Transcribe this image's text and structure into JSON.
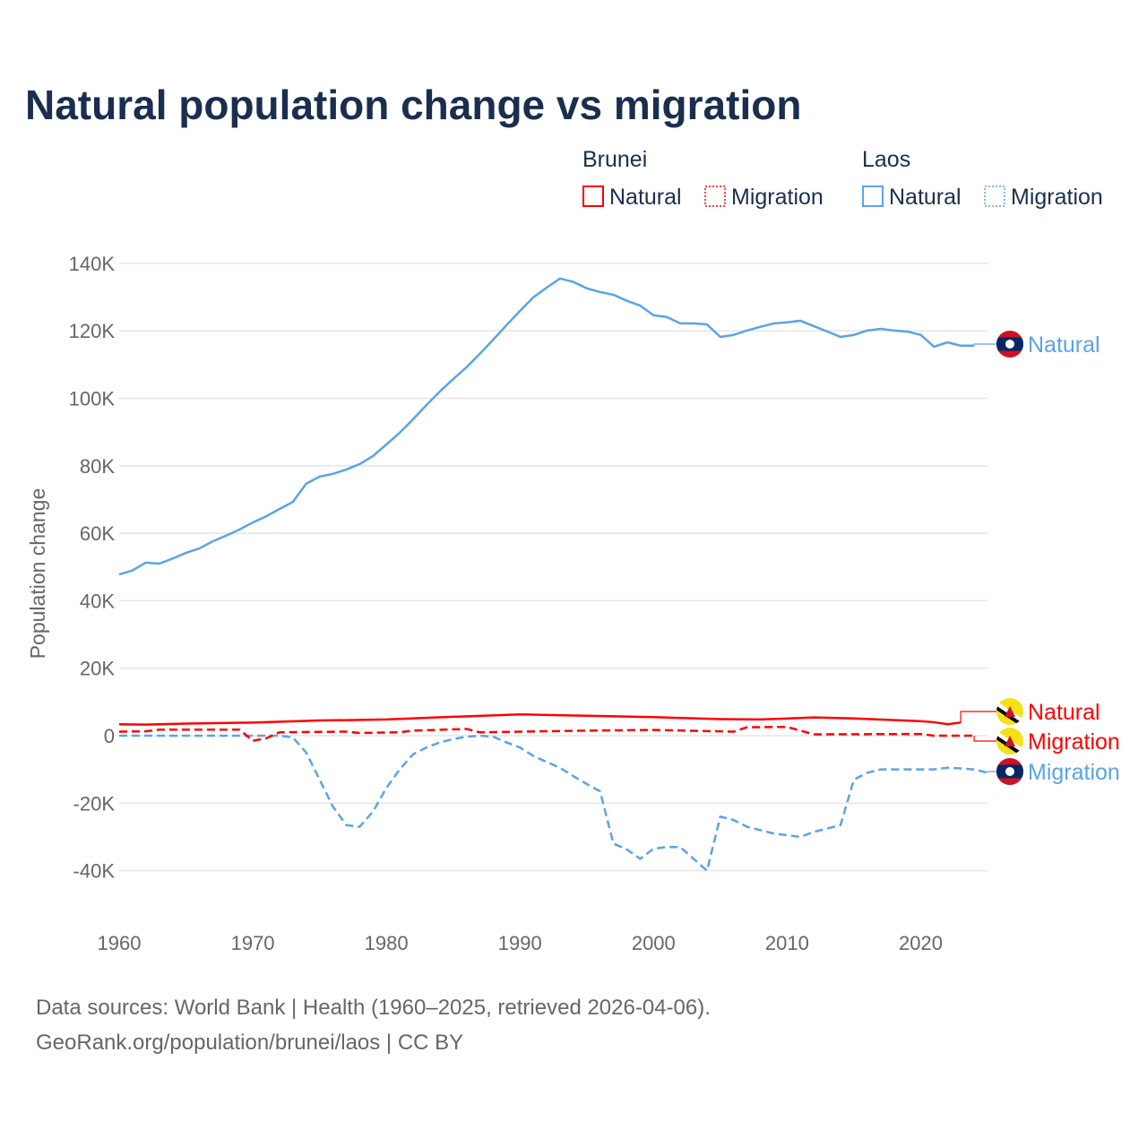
{
  "chart_data": {
    "type": "line",
    "title": "Natural population change vs migration",
    "xlabel": "",
    "ylabel": "Population change",
    "xlim": [
      1960,
      2025
    ],
    "ylim": [
      -50000,
      140000
    ],
    "x_ticks": [
      "1960",
      "1970",
      "1980",
      "1990",
      "2000",
      "2010",
      "2020"
    ],
    "y_ticks": [
      {
        "v": 140000,
        "label": "140K"
      },
      {
        "v": 120000,
        "label": "120K"
      },
      {
        "v": 100000,
        "label": "100K"
      },
      {
        "v": 80000,
        "label": "80K"
      },
      {
        "v": 60000,
        "label": "60K"
      },
      {
        "v": 40000,
        "label": "40K"
      },
      {
        "v": 20000,
        "label": "20K"
      },
      {
        "v": 0,
        "label": "0"
      },
      {
        "v": -20000,
        "label": "-20K"
      },
      {
        "v": -40000,
        "label": "-40K"
      }
    ],
    "grid": true,
    "legend": {
      "placement": "top-right",
      "groups": [
        {
          "name": "Brunei",
          "items": [
            "Natural",
            "Migration"
          ]
        },
        {
          "name": "Laos",
          "items": [
            "Natural",
            "Migration"
          ]
        }
      ]
    },
    "colors": {
      "Brunei": "#ff0000",
      "Laos": "#5ba3e8"
    },
    "series": [
      {
        "name": "Laos Natural",
        "country": "Laos",
        "kind": "Natural",
        "label": "Natural",
        "x": [
          1960,
          1961,
          1962,
          1963,
          1964,
          1965,
          1966,
          1967,
          1968,
          1969,
          1970,
          1971,
          1972,
          1973,
          1974,
          1975,
          1976,
          1977,
          1978,
          1979,
          1980,
          1981,
          1982,
          1983,
          1984,
          1985,
          1986,
          1987,
          1988,
          1989,
          1990,
          1991,
          1992,
          1993,
          1994,
          1995,
          1996,
          1997,
          1998,
          1999,
          2000,
          2001,
          2002,
          2003,
          2004,
          2005,
          2006,
          2007,
          2008,
          2009,
          2010,
          2011,
          2012,
          2013,
          2014,
          2015,
          2016,
          2017,
          2018,
          2019,
          2020,
          2021,
          2022,
          2023,
          2024
        ],
        "y": [
          47800,
          49000,
          51300,
          51000,
          52500,
          54200,
          55500,
          57600,
          59300,
          61100,
          63200,
          65000,
          67200,
          69300,
          74700,
          76800,
          77600,
          78900,
          80500,
          82900,
          86300,
          89800,
          93800,
          98000,
          102000,
          105700,
          109200,
          113200,
          117400,
          121700,
          125900,
          129900,
          132800,
          135500,
          134500,
          132600,
          131500,
          130700,
          128900,
          127500,
          124600,
          124100,
          122200,
          122200,
          121900,
          118200,
          118800,
          120100,
          121200,
          122200,
          122500,
          123000,
          121400,
          119800,
          118200,
          118800,
          120100,
          120600,
          120100,
          119800,
          118800,
          115300,
          116600,
          115600,
          115600
        ]
      },
      {
        "name": "Laos Migration",
        "country": "Laos",
        "kind": "Migration",
        "label": "Migration",
        "x": [
          1960,
          1965,
          1970,
          1972,
          1973,
          1974,
          1975,
          1976,
          1977,
          1978,
          1979,
          1980,
          1981,
          1982,
          1983,
          1984,
          1985,
          1986,
          1987,
          1988,
          1989,
          1990,
          1991,
          1992,
          1993,
          1994,
          1995,
          1996,
          1997,
          1998,
          1999,
          2000,
          2001,
          2002,
          2003,
          2004,
          2005,
          2006,
          2007,
          2008,
          2009,
          2010,
          2011,
          2012,
          2013,
          2014,
          2015,
          2016,
          2017,
          2018,
          2019,
          2020,
          2021,
          2022,
          2023,
          2024,
          2025
        ],
        "y": [
          0,
          0,
          0,
          0,
          -500,
          -5000,
          -13000,
          -21000,
          -26500,
          -27000,
          -22500,
          -15500,
          -10000,
          -5500,
          -3500,
          -2000,
          -1000,
          -300,
          0,
          -300,
          -2000,
          -3500,
          -6000,
          -7800,
          -9500,
          -12000,
          -14300,
          -16500,
          -32000,
          -33700,
          -36500,
          -33500,
          -33000,
          -33000,
          -36500,
          -40000,
          -24000,
          -25000,
          -27000,
          -28000,
          -29000,
          -29500,
          -30000,
          -28500,
          -27500,
          -26500,
          -13000,
          -11000,
          -10000,
          -10000,
          -10000,
          -10000,
          -10000,
          -9500,
          -9700,
          -10000,
          -11000
        ]
      },
      {
        "name": "Brunei Natural",
        "country": "Brunei",
        "kind": "Natural",
        "label": "Natural",
        "x": [
          1960,
          1962,
          1965,
          1970,
          1975,
          1980,
          1985,
          1990,
          1995,
          2000,
          2005,
          2008,
          2012,
          2015,
          2020,
          2021,
          2022,
          2023
        ],
        "y": [
          3400,
          3300,
          3600,
          3900,
          4500,
          4800,
          5600,
          6300,
          5900,
          5500,
          4900,
          4800,
          5400,
          5100,
          4300,
          4000,
          3400,
          3900
        ]
      },
      {
        "name": "Brunei Migration",
        "country": "Brunei",
        "kind": "Migration",
        "label": "Migration",
        "x": [
          1960,
          1962,
          1963,
          1969,
          1970,
          1971,
          1972,
          1977,
          1978,
          1981,
          1982,
          1986,
          1987,
          1995,
          2000,
          2006,
          2007,
          2010,
          2012,
          2020,
          2021,
          2024
        ],
        "y": [
          1200,
          1300,
          1800,
          1800,
          -1500,
          -800,
          1000,
          1200,
          800,
          1000,
          1500,
          2000,
          1000,
          1500,
          1700,
          1200,
          2500,
          2600,
          400,
          500,
          0,
          0
        ]
      }
    ]
  },
  "footer": {
    "line1": "Data sources: World Bank | Health (1960–2025, retrieved 2026-04-06).",
    "line2": "GeoRank.org/population/brunei/laos | CC BY"
  }
}
